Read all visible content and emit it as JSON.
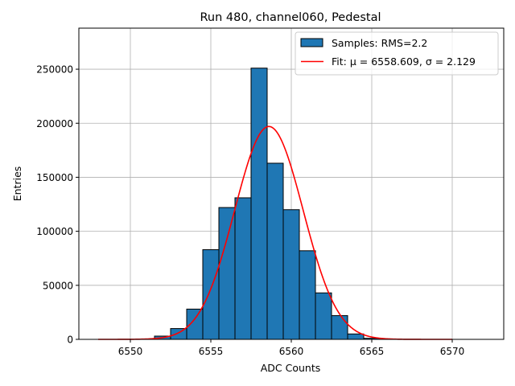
{
  "chart_data": {
    "type": "bar",
    "title": "Run 480, channel060, Pedestal",
    "xlabel": "ADC Counts",
    "ylabel": "Entries",
    "xlim": [
      6546.8,
      6573.2
    ],
    "ylim": [
      0,
      288000
    ],
    "xticks": [
      6550,
      6555,
      6560,
      6565,
      6570
    ],
    "yticks": [
      0,
      50000,
      100000,
      150000,
      200000,
      250000
    ],
    "grid": true,
    "legend_position": "top-right",
    "bin_width": 1,
    "bins": [
      {
        "x": 6552,
        "value": 3000
      },
      {
        "x": 6553,
        "value": 10000
      },
      {
        "x": 6554,
        "value": 28000
      },
      {
        "x": 6555,
        "value": 83000
      },
      {
        "x": 6556,
        "value": 122000
      },
      {
        "x": 6557,
        "value": 131000
      },
      {
        "x": 6558,
        "value": 251000
      },
      {
        "x": 6559,
        "value": 163000
      },
      {
        "x": 6560,
        "value": 120000
      },
      {
        "x": 6561,
        "value": 82000
      },
      {
        "x": 6562,
        "value": 43000
      },
      {
        "x": 6563,
        "value": 22000
      },
      {
        "x": 6564,
        "value": 5000
      },
      {
        "x": 6565,
        "value": 1000
      }
    ],
    "fit": {
      "mu": 6558.609,
      "sigma": 2.129,
      "amplitude": 197000,
      "range": [
        6548,
        6570
      ]
    },
    "legend": {
      "samples_label": "Samples: RMS=2.2",
      "fit_prefix": "Fit: ",
      "fit_mu_label": "μ = 6558.609",
      "fit_sep": ", ",
      "fit_sigma_label": "σ = 2.129"
    },
    "colors": {
      "bar_fill": "#1f77b4",
      "bar_edge": "#000000",
      "fit_line": "#ff0000",
      "grid": "#b0b0b0"
    }
  }
}
